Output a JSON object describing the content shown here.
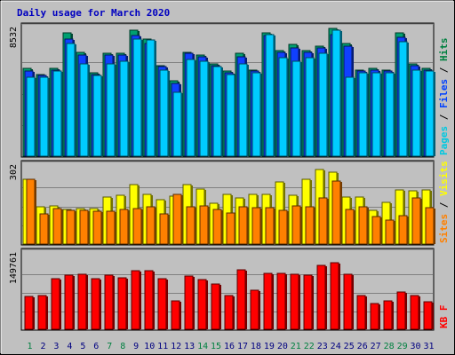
{
  "chart_data": {
    "type": "bar",
    "title": "Daily usage for March 2020",
    "title_color": "#0000c0",
    "background": "#c0c0c0",
    "categories": [
      "1",
      "2",
      "3",
      "4",
      "5",
      "6",
      "7",
      "8",
      "9",
      "10",
      "11",
      "12",
      "13",
      "14",
      "15",
      "16",
      "17",
      "18",
      "19",
      "20",
      "21",
      "22",
      "23",
      "24",
      "25",
      "26",
      "27",
      "28",
      "29",
      "30",
      "31"
    ],
    "weekend_days": [
      "1",
      "7",
      "8",
      "14",
      "15",
      "21",
      "22",
      "28",
      "29"
    ],
    "weekend_color": "#008040",
    "weekday_color": "#000080",
    "panels": [
      {
        "name": "hits",
        "max_label": "8532",
        "ymax": 8532,
        "side_labels": [
          {
            "text": "Pages",
            "color": "#00c8e0"
          },
          {
            "text": " / ",
            "color": "#000000"
          },
          {
            "text": "Files",
            "color": "#0040ff"
          },
          {
            "text": " / ",
            "color": "#000000"
          },
          {
            "text": "Hits",
            "color": "#008040"
          }
        ],
        "series": [
          {
            "name": "Hits",
            "color": "#00a070",
            "values": [
              5900,
              5500,
              5900,
              8300,
              7000,
              5600,
              6900,
              6900,
              8500,
              7900,
              6100,
              5100,
              7000,
              6800,
              6200,
              5700,
              6900,
              5800,
              8300,
              7100,
              7500,
              7100,
              7400,
              8600,
              7600,
              5800,
              5900,
              5800,
              8300,
              6200,
              5900
            ]
          },
          {
            "name": "Files",
            "color": "#1040ff",
            "values": [
              5700,
              5400,
              5800,
              7900,
              6800,
              5500,
              6800,
              6800,
              8100,
              7600,
              6000,
              4900,
              6900,
              6700,
              6100,
              5600,
              6700,
              5700,
              8100,
              7000,
              7300,
              7000,
              7300,
              8200,
              7400,
              5700,
              5800,
              5700,
              8000,
              6100,
              5800
            ]
          },
          {
            "name": "Pages",
            "color": "#00ccff",
            "values": [
              5300,
              5300,
              5700,
              7600,
              6200,
              5400,
              6200,
              6400,
              7900,
              7800,
              5800,
              4300,
              6500,
              6400,
              6000,
              5500,
              6200,
              5600,
              8200,
              6600,
              6400,
              6600,
              6900,
              8500,
              5300,
              5600,
              5600,
              5600,
              7700,
              5800,
              5700
            ]
          }
        ]
      },
      {
        "name": "visits",
        "max_label": "302",
        "ymax": 302,
        "side_labels": [
          {
            "text": "Sites",
            "color": "#ff8000"
          },
          {
            "text": " / ",
            "color": "#000000"
          },
          {
            "text": "Visits",
            "color": "#ffff00"
          }
        ],
        "series": [
          {
            "name": "Visits",
            "color": "#ffff00",
            "values": [
              255,
              147,
              150,
              134,
              138,
              140,
              185,
              192,
              232,
              193,
              173,
              186,
              232,
              216,
              158,
              196,
              181,
              194,
              195,
              242,
              192,
              252,
              293,
              282,
              183,
              185,
              131,
              164,
              211,
              209,
              212
            ]
          },
          {
            "name": "Sites",
            "color": "#ff8000",
            "values": [
              253,
              118,
              138,
              131,
              131,
              130,
              127,
              137,
              138,
              145,
              118,
              193,
              145,
              148,
              137,
              123,
              145,
              142,
              143,
              131,
              148,
              146,
              179,
              247,
              137,
              146,
              106,
              95,
              110,
              181,
              141
            ]
          }
        ]
      },
      {
        "name": "kbytes",
        "max_label": "149761",
        "ymax": 149761,
        "side_labels": [
          {
            "text": "KB F",
            "color": "#ff0000"
          }
        ],
        "series": [
          {
            "name": "KB F",
            "color": "#ff0000",
            "values": [
              66000,
              67000,
              101000,
              108000,
              111000,
              101000,
              108000,
              103000,
              118000,
              117000,
              102000,
              57000,
              107000,
              100000,
              91000,
              68000,
              120000,
              78000,
              113000,
              112000,
              111000,
              109000,
              128000,
              134000,
              111000,
              67000,
              51000,
              57000,
              75000,
              68000,
              56000
            ]
          }
        ]
      }
    ]
  }
}
